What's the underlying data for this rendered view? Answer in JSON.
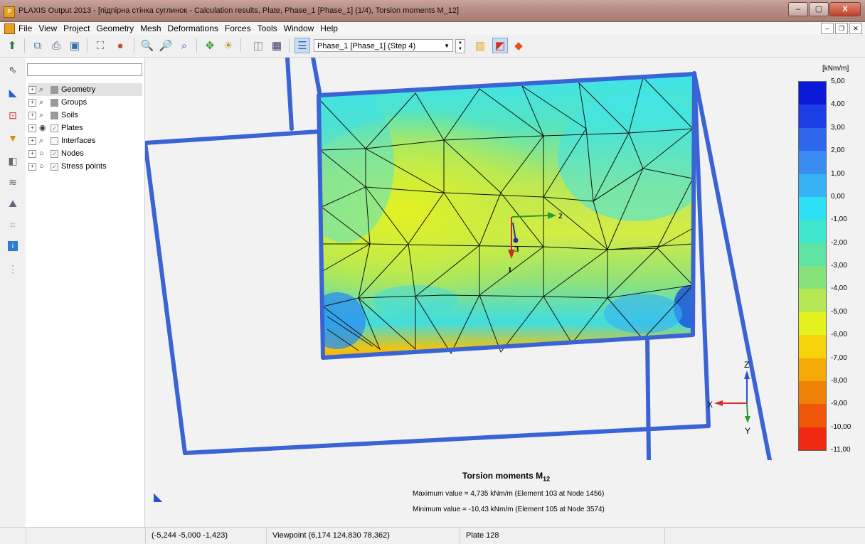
{
  "window": {
    "title": "PLAXIS Output 2013 - [підпірна стінка суглинок - Calculation results, Plate, Phase_1 [Phase_1] (1/4), Torsion moments M_12]",
    "minimize": "–",
    "maximize": "▢",
    "close": "X"
  },
  "menu": {
    "items": [
      "File",
      "View",
      "Project",
      "Geometry",
      "Mesh",
      "Deformations",
      "Forces",
      "Tools",
      "Window",
      "Help"
    ]
  },
  "toolbar": {
    "phase_selected": "Phase_1 [Phase_1] (Step 4)"
  },
  "tree": {
    "items": [
      {
        "label": "Geometry",
        "checked": "filled"
      },
      {
        "label": "Groups",
        "checked": "filled"
      },
      {
        "label": "Soils",
        "checked": "filled"
      },
      {
        "label": "Plates",
        "checked": "check"
      },
      {
        "label": "Interfaces",
        "checked": "empty"
      },
      {
        "label": "Nodes",
        "checked": "check"
      },
      {
        "label": "Stress points",
        "checked": "check"
      }
    ]
  },
  "legend": {
    "unit": "[kNm/m]",
    "labels": [
      "5,00",
      "4,00",
      "3,00",
      "2,00",
      "1,00",
      "0,00",
      "-1,00",
      "-2,00",
      "-3,00",
      "-4,00",
      "-5,00",
      "-6,00",
      "-7,00",
      "-8,00",
      "-9,00",
      "-10,00",
      "-11,00"
    ],
    "colors": [
      "#0a1ad8",
      "#1c3ee6",
      "#2e66ee",
      "#3a8cf2",
      "#35b2f4",
      "#2ee0f6",
      "#3fe6cf",
      "#5ee3a3",
      "#86e27b",
      "#b5e852",
      "#e4f21f",
      "#f6d20d",
      "#f4ab08",
      "#f08208",
      "#ee5608",
      "#f02a10"
    ]
  },
  "axes": {
    "local_1": "1",
    "local_2": "2",
    "local_3": "3",
    "global_x": "X",
    "global_y": "Y",
    "global_z": "Z"
  },
  "info": {
    "title": "Torsion moments M",
    "title_sub": "12",
    "max_line": "Maximum value = 4,735 kNm/m (Element 103 at Node 1456)",
    "min_line": "Minimum value = -10,43 kNm/m (Element 105 at Node 3574)"
  },
  "status": {
    "coords": "(-5,244 -5,000 -1,423)",
    "viewpoint": "Viewpoint (6,174 124,830 78,362)",
    "selection": "Plate 128"
  }
}
